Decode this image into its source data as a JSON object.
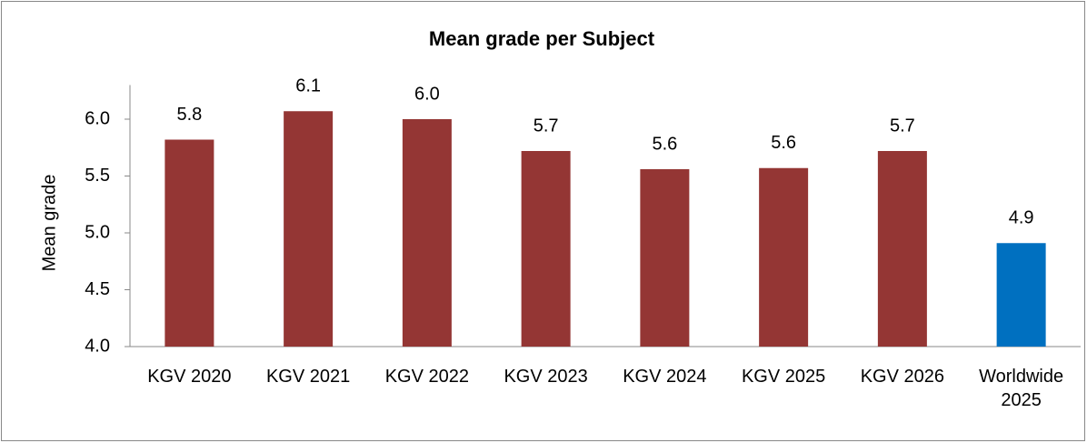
{
  "chart_data": {
    "type": "bar",
    "title": "Mean grade per Subject",
    "y_label": "Mean grade",
    "categories": [
      "KGV 2020",
      "KGV 2021",
      "KGV 2022",
      "KGV 2023",
      "KGV 2024",
      "KGV 2025",
      "KGV 2026",
      "Worldwide 2025"
    ],
    "values": [
      5.82,
      6.07,
      6.0,
      5.72,
      5.56,
      5.57,
      5.72,
      4.91
    ],
    "value_labels": [
      "5.8",
      "6.1",
      "6.0",
      "5.7",
      "5.6",
      "5.6",
      "5.7",
      "4.9"
    ],
    "colors": [
      "#943634",
      "#943634",
      "#943634",
      "#943634",
      "#943634",
      "#943634",
      "#943634",
      "#0070c0"
    ],
    "ylim": [
      4,
      6.3
    ],
    "yticks": [
      {
        "value": 4,
        "label": "4.0"
      },
      4.5,
      {
        "value": 5,
        "label": "5.0"
      },
      5.5,
      {
        "value": 6,
        "label": "6.0"
      }
    ],
    "grid": false
  }
}
